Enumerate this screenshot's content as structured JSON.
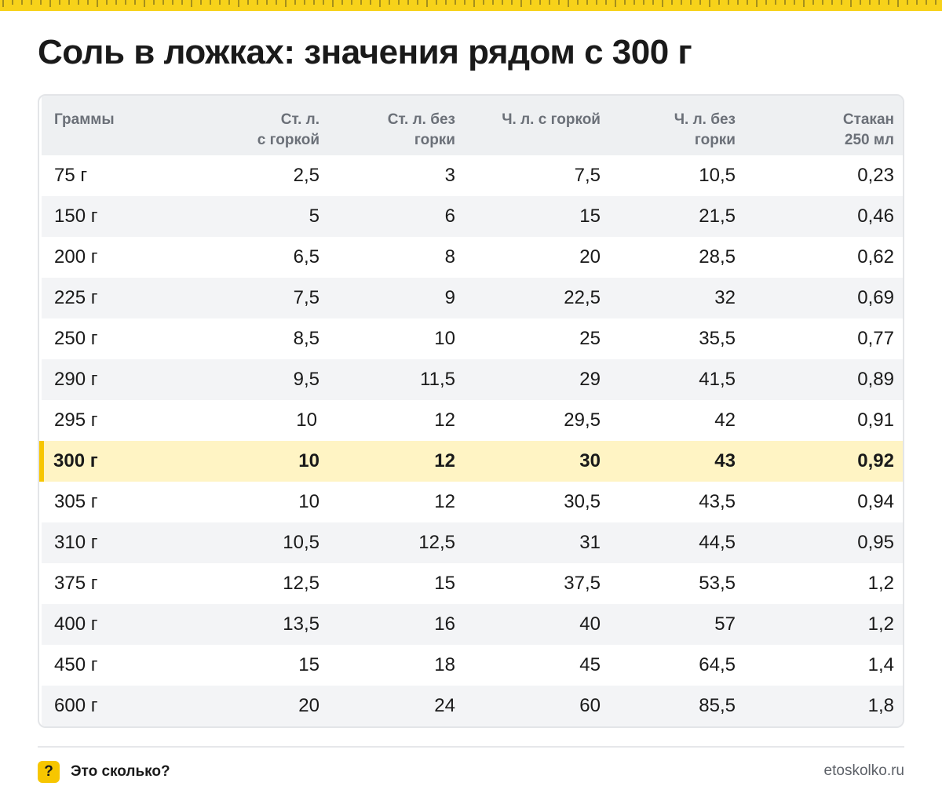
{
  "title": "Соль в ложках: значения рядом с 300 г",
  "colors": {
    "accent": "#f7c600",
    "ruler": "#f7d21a",
    "highlight": "#fff4c4"
  },
  "table": {
    "headers": [
      {
        "line1": "Граммы",
        "line2": ""
      },
      {
        "line1": "Ст. л.",
        "line2": "с горкой"
      },
      {
        "line1": "Ст. л. без",
        "line2": "горки"
      },
      {
        "line1": "Ч. л. с горкой",
        "line2": ""
      },
      {
        "line1": "Ч. л. без",
        "line2": "горки"
      },
      {
        "line1": "Стакан",
        "line2": "250 мл"
      }
    ],
    "highlight_index": 7,
    "rows": [
      [
        "75 г",
        "2,5",
        "3",
        "7,5",
        "10,5",
        "0,23"
      ],
      [
        "150 г",
        "5",
        "6",
        "15",
        "21,5",
        "0,46"
      ],
      [
        "200 г",
        "6,5",
        "8",
        "20",
        "28,5",
        "0,62"
      ],
      [
        "225 г",
        "7,5",
        "9",
        "22,5",
        "32",
        "0,69"
      ],
      [
        "250 г",
        "8,5",
        "10",
        "25",
        "35,5",
        "0,77"
      ],
      [
        "290 г",
        "9,5",
        "11,5",
        "29",
        "41,5",
        "0,89"
      ],
      [
        "295 г",
        "10",
        "12",
        "29,5",
        "42",
        "0,91"
      ],
      [
        "300 г",
        "10",
        "12",
        "30",
        "43",
        "0,92"
      ],
      [
        "305 г",
        "10",
        "12",
        "30,5",
        "43,5",
        "0,94"
      ],
      [
        "310 г",
        "10,5",
        "12,5",
        "31",
        "44,5",
        "0,95"
      ],
      [
        "375 г",
        "12,5",
        "15",
        "37,5",
        "53,5",
        "1,2"
      ],
      [
        "400 г",
        "13,5",
        "16",
        "40",
        "57",
        "1,2"
      ],
      [
        "450 г",
        "15",
        "18",
        "45",
        "64,5",
        "1,4"
      ],
      [
        "600 г",
        "20",
        "24",
        "60",
        "85,5",
        "1,8"
      ]
    ]
  },
  "footer": {
    "brand_icon": "?",
    "brand_icon_name": "question-mark-icon",
    "brand_name": "Это сколько?",
    "site": "etoskolko.ru"
  }
}
